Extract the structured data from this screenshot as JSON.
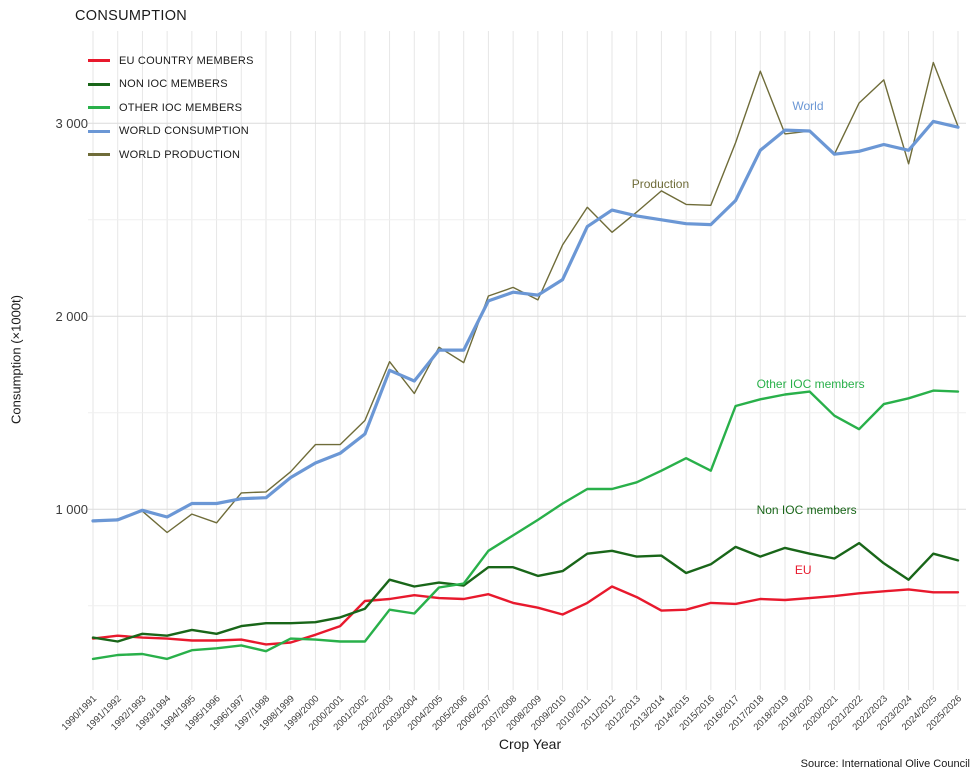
{
  "title": "CONSUMPTION",
  "axes": {
    "y_title": "Consumption (×1000t)",
    "x_title": "Crop Year",
    "y_ticks": [
      {
        "value": 1000,
        "label": "1 000"
      },
      {
        "value": 2000,
        "label": "2 000"
      },
      {
        "value": 3000,
        "label": "3 000"
      }
    ],
    "y_grid_minor": [
      500,
      1500,
      2500
    ],
    "y_grid_major": [
      1000,
      2000,
      3000
    ]
  },
  "source": "Source: International Olive Council",
  "colors": {
    "eu": "#e8192d",
    "non-ioc": "#196619",
    "other-ioc": "#29b04a",
    "world-consumption": "#6b97d5",
    "world-production": "#6f6c39"
  },
  "legend": [
    {
      "key": "eu",
      "label": "EU COUNTRY MEMBERS"
    },
    {
      "key": "non-ioc",
      "label": "NON IOC MEMBERS"
    },
    {
      "key": "other-ioc",
      "label": "OTHER IOC MEMBERS"
    },
    {
      "key": "world-consumption",
      "label": "WORLD CONSUMPTION"
    },
    {
      "key": "world-production",
      "label": "WORLD PRODUCTION"
    }
  ],
  "annotations": [
    {
      "key": "world-consumption",
      "text": "World",
      "x_year": 28.3,
      "y_value": 3069
    },
    {
      "key": "world-production",
      "text": "Production",
      "x_year": 21.8,
      "y_value": 2665
    },
    {
      "key": "other-ioc",
      "text": "Other IOC members",
      "x_year": 26.85,
      "y_value": 1629
    },
    {
      "key": "non-ioc",
      "text": "Non IOC members",
      "x_year": 26.85,
      "y_value": 976
    },
    {
      "key": "eu",
      "text": "EU",
      "x_year": 28.4,
      "y_value": 665
    }
  ],
  "chart_data": {
    "type": "line",
    "title": "CONSUMPTION",
    "xlabel": "Crop Year",
    "ylabel": "Consumption (×1000t)",
    "ylim": [
      0,
      3480
    ],
    "grid": true,
    "legend_position": "top-left",
    "x": [
      "1990/1991",
      "1991/1992",
      "1992/1993",
      "1993/1994",
      "1994/1995",
      "1995/1996",
      "1996/1997",
      "1997/1998",
      "1998/1999",
      "1999/2000",
      "2000/2001",
      "2001/2002",
      "2002/2003",
      "2003/2004",
      "2004/2005",
      "2005/2006",
      "2006/2007",
      "2007/2008",
      "2008/2009",
      "2009/2010",
      "2010/2011",
      "2011/2012",
      "2012/2013",
      "2013/2014",
      "2014/2015",
      "2015/2016",
      "2016/2017",
      "2017/2018",
      "2018/2019",
      "2019/2020",
      "2020/2021",
      "2021/2022",
      "2022/2023",
      "2023/2024",
      "2024/2025",
      "2025/2026"
    ],
    "series": [
      {
        "key": "eu",
        "name": "EU COUNTRY MEMBERS",
        "width": 2.4,
        "values": [
          330,
          345,
          335,
          330,
          320,
          320,
          325,
          300,
          310,
          350,
          395,
          525,
          535,
          555,
          540,
          535,
          560,
          515,
          490,
          455,
          515,
          600,
          545,
          475,
          480,
          515,
          510,
          535,
          530,
          540,
          550,
          565,
          575,
          585,
          570,
          570
        ]
      },
      {
        "key": "non-ioc",
        "name": "NON IOC MEMBERS",
        "width": 2.4,
        "values": [
          335,
          315,
          355,
          345,
          375,
          355,
          395,
          410,
          410,
          415,
          440,
          485,
          635,
          600,
          620,
          605,
          700,
          700,
          655,
          680,
          770,
          785,
          755,
          760,
          670,
          715,
          805,
          755,
          800,
          770,
          745,
          825,
          720,
          635,
          770,
          735
        ]
      },
      {
        "key": "other-ioc",
        "name": "OTHER IOC MEMBERS",
        "width": 2.4,
        "values": [
          225,
          245,
          250,
          225,
          270,
          280,
          295,
          265,
          330,
          325,
          315,
          315,
          480,
          460,
          595,
          615,
          785,
          865,
          945,
          1030,
          1105,
          1105,
          1140,
          1200,
          1265,
          1200,
          1535,
          1570,
          1595,
          1610,
          1485,
          1415,
          1545,
          1575,
          1615,
          1610
        ]
      },
      {
        "key": "world-production",
        "name": "WORLD PRODUCTION",
        "width": 1.4,
        "values": [
          935,
          950,
          990,
          880,
          975,
          930,
          1085,
          1090,
          1195,
          1335,
          1335,
          1460,
          1765,
          1600,
          1840,
          1760,
          2105,
          2150,
          2085,
          2370,
          2565,
          2435,
          2540,
          2650,
          2580,
          2575,
          2900,
          3270,
          2945,
          2960,
          2840,
          3105,
          3225,
          2790,
          3315,
          2985
        ]
      },
      {
        "key": "world-consumption",
        "name": "WORLD CONSUMPTION",
        "width": 3.2,
        "values": [
          940,
          945,
          995,
          960,
          1030,
          1030,
          1055,
          1060,
          1165,
          1240,
          1290,
          1390,
          1720,
          1665,
          1825,
          1825,
          2080,
          2125,
          2110,
          2190,
          2465,
          2550,
          2520,
          2500,
          2480,
          2475,
          2600,
          2860,
          2965,
          2960,
          2840,
          2855,
          2890,
          2860,
          3010,
          2980
        ]
      }
    ]
  }
}
